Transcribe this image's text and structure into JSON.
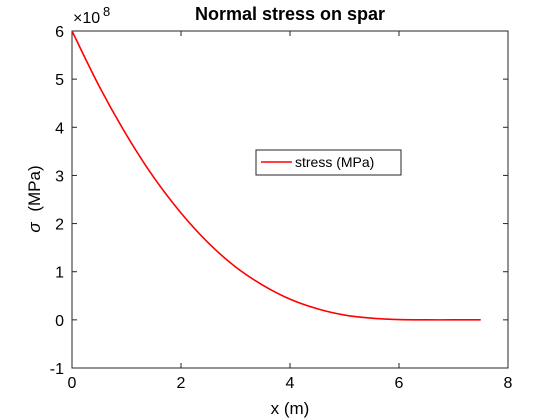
{
  "chart_data": {
    "type": "line",
    "title": "Normal stress on spar",
    "xlabel": "x (m)",
    "ylabel_symbol": "σ",
    "ylabel_text": "(MPa)",
    "y_multiplier_base": "×10",
    "y_multiplier_exp": "8",
    "xlim": [
      0,
      8
    ],
    "ylim": [
      -1,
      6
    ],
    "xticks": [
      0,
      2,
      4,
      6,
      8
    ],
    "yticks": [
      -1,
      0,
      1,
      2,
      3,
      4,
      5,
      6
    ],
    "grid": false,
    "legend_position": "center-right",
    "series": [
      {
        "name": "stress (MPa)",
        "color": "#ff0000",
        "x": [
          0,
          0.5,
          1,
          1.5,
          2,
          2.5,
          3,
          3.5,
          4,
          4.5,
          5,
          5.5,
          6,
          6.5,
          7,
          7.5
        ],
        "y": [
          6.0,
          4.85,
          3.84,
          2.96,
          2.22,
          1.6,
          1.1,
          0.72,
          0.43,
          0.23,
          0.1,
          0.035,
          0.007,
          0.0005,
          0.0,
          0.0
        ]
      }
    ]
  }
}
